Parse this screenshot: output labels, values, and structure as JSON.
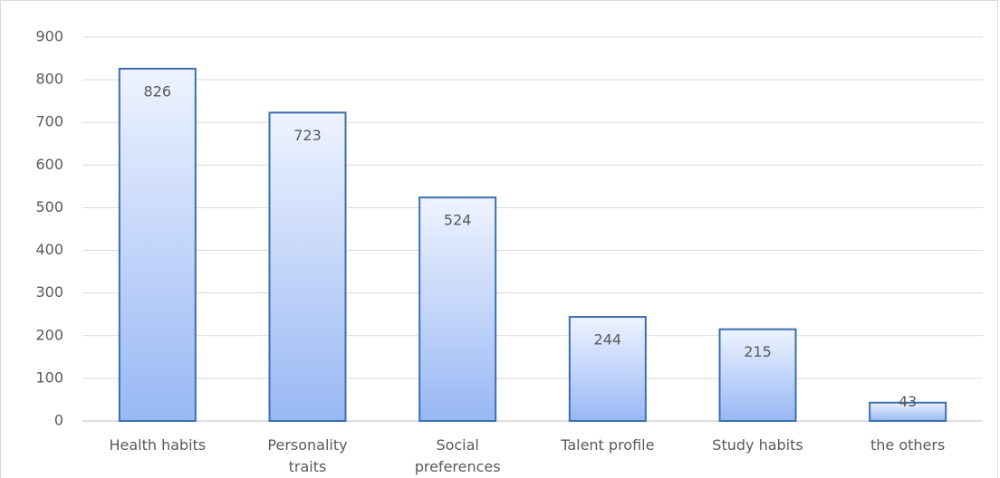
{
  "chart_data": {
    "type": "bar",
    "categories": [
      "Health habits",
      "Personality traits",
      "Social preferences",
      "Talent profile",
      "Study habits",
      "the others"
    ],
    "values": [
      826,
      723,
      524,
      244,
      215,
      43
    ],
    "color": "#3c6fb0",
    "ylim": [
      0,
      900
    ],
    "yticks": [
      0,
      100,
      200,
      300,
      400,
      500,
      600,
      700,
      800,
      900
    ],
    "grid": true
  }
}
